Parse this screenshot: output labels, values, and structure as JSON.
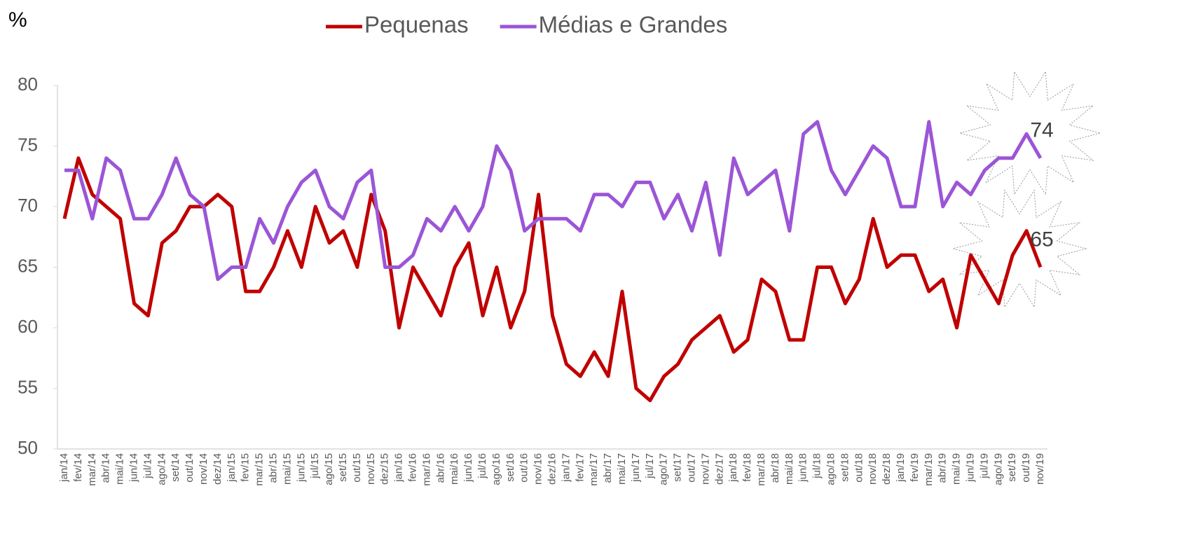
{
  "chart_data": {
    "type": "line",
    "ylabel": "%",
    "categories": [
      "jan/14",
      "fev/14",
      "mar/14",
      "abr/14",
      "mai/14",
      "jun/14",
      "jul/14",
      "ago/14",
      "set/14",
      "out/14",
      "nov/14",
      "dez/14",
      "jan/15",
      "fev/15",
      "mar/15",
      "abr/15",
      "mai/15",
      "jun/15",
      "jul/15",
      "ago/15",
      "set/15",
      "out/15",
      "nov/15",
      "dez/15",
      "jan/16",
      "fev/16",
      "mar/16",
      "abr/16",
      "mai/16",
      "jun/16",
      "jul/16",
      "ago/16",
      "set/16",
      "out/16",
      "nov/16",
      "dez/16",
      "jan/17",
      "fev/17",
      "mar/17",
      "abr/17",
      "mai/17",
      "jun/17",
      "jul/17",
      "ago/17",
      "set/17",
      "out/17",
      "nov/17",
      "dez/17",
      "jan/18",
      "fev/18",
      "mar/18",
      "abr/18",
      "mai/18",
      "jun/18",
      "jul/18",
      "ago/18",
      "set/18",
      "out/18",
      "nov/18",
      "dez/18",
      "jan/19",
      "fev/19",
      "mar/19",
      "abr/19",
      "mai/19",
      "jun/19",
      "jul/19",
      "ago/19",
      "set/19",
      "out/19",
      "nov/19"
    ],
    "series": [
      {
        "name": "Pequenas",
        "color": "#c00000",
        "values": [
          69,
          74,
          71,
          70,
          69,
          62,
          61,
          67,
          68,
          70,
          70,
          71,
          70,
          63,
          63,
          65,
          68,
          65,
          70,
          67,
          68,
          65,
          71,
          68,
          60,
          65,
          63,
          61,
          65,
          67,
          61,
          65,
          60,
          63,
          71,
          61,
          57,
          56,
          58,
          56,
          63,
          55,
          54,
          56,
          57,
          59,
          60,
          61,
          58,
          59,
          64,
          63,
          59,
          59,
          65,
          65,
          62,
          64,
          69,
          65,
          66,
          66,
          63,
          64,
          60,
          66,
          64,
          62,
          66,
          68,
          65
        ]
      },
      {
        "name": "Médias e Grandes",
        "color": "#9b55d6",
        "values": [
          73,
          73,
          69,
          74,
          73,
          69,
          69,
          71,
          74,
          71,
          70,
          64,
          65,
          65,
          69,
          67,
          70,
          72,
          73,
          70,
          69,
          72,
          73,
          65,
          65,
          66,
          69,
          68,
          70,
          68,
          70,
          75,
          73,
          68,
          69,
          69,
          69,
          68,
          71,
          71,
          70,
          72,
          72,
          69,
          71,
          68,
          72,
          66,
          74,
          71,
          72,
          73,
          68,
          76,
          77,
          73,
          71,
          73,
          75,
          74,
          70,
          70,
          77,
          70,
          72,
          71,
          73,
          74,
          74,
          76,
          74
        ]
      }
    ],
    "ylim": [
      50,
      80
    ],
    "yticks": [
      50,
      55,
      60,
      65,
      70,
      75,
      80
    ],
    "grid": false,
    "legend": "top"
  }
}
